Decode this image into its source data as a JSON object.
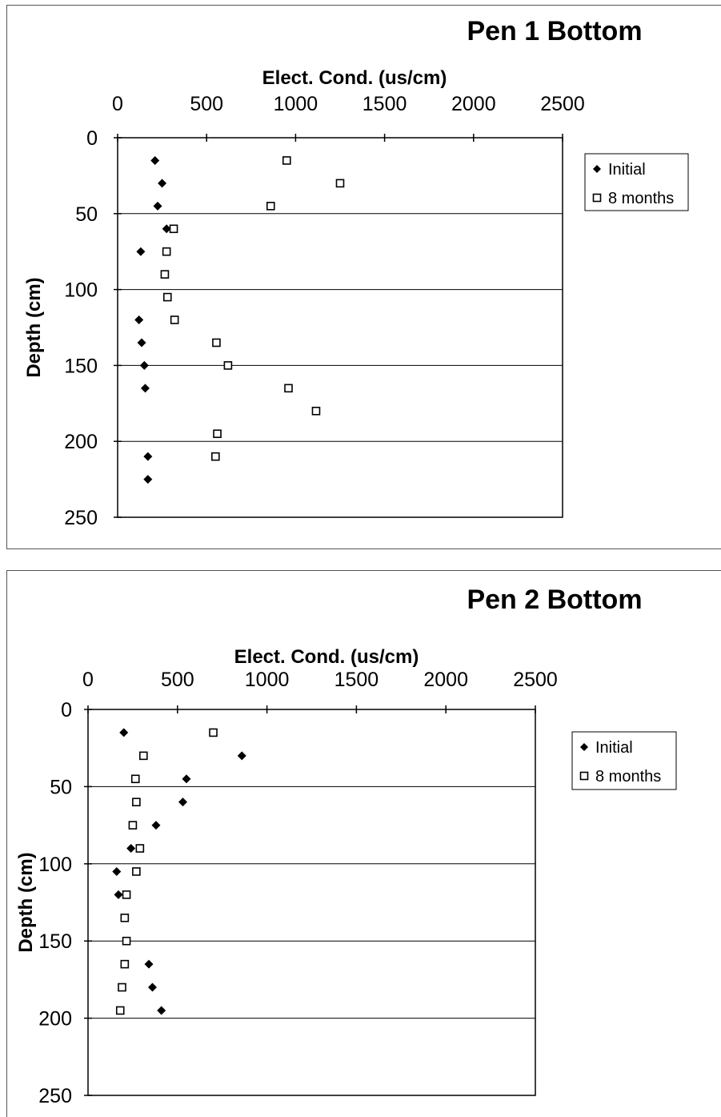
{
  "chart_data": [
    {
      "type": "scatter",
      "title": "Pen 1 Bottom",
      "xlabel": "Elect. Cond. (us/cm)",
      "ylabel": "Depth (cm)",
      "xlim": [
        0,
        2500
      ],
      "ylim": [
        0,
        250
      ],
      "x_ticks": [
        "0",
        "500",
        "1000",
        "1500",
        "2000",
        "2500"
      ],
      "y_ticks": [
        "0",
        "50",
        "100",
        "150",
        "200",
        "250"
      ],
      "y_inverted": true,
      "x_axis_position": "top",
      "grid": "horizontal",
      "legend_position": "right",
      "series": [
        {
          "name": "Initial",
          "marker": "filled-diamond",
          "points": [
            [
              210,
              15
            ],
            [
              250,
              30
            ],
            [
              225,
              45
            ],
            [
              275,
              60
            ],
            [
              130,
              75
            ],
            [
              120,
              120
            ],
            [
              135,
              135
            ],
            [
              150,
              150
            ],
            [
              155,
              165
            ],
            [
              170,
              210
            ],
            [
              170,
              225
            ]
          ]
        },
        {
          "name": "8 months",
          "marker": "open-square",
          "points": [
            [
              950,
              15
            ],
            [
              1250,
              30
            ],
            [
              860,
              45
            ],
            [
              315,
              60
            ],
            [
              275,
              75
            ],
            [
              265,
              90
            ],
            [
              280,
              105
            ],
            [
              320,
              120
            ],
            [
              555,
              135
            ],
            [
              620,
              150
            ],
            [
              960,
              165
            ],
            [
              1115,
              180
            ],
            [
              560,
              195
            ],
            [
              550,
              210
            ]
          ]
        }
      ]
    },
    {
      "type": "scatter",
      "title": "Pen 2 Bottom",
      "xlabel": "Elect. Cond. (us/cm)",
      "ylabel": "Depth (cm)",
      "xlim": [
        0,
        2500
      ],
      "ylim": [
        0,
        250
      ],
      "x_ticks": [
        "0",
        "500",
        "1000",
        "1500",
        "2000",
        "2500"
      ],
      "y_ticks": [
        "0",
        "50",
        "100",
        "150",
        "200",
        "250"
      ],
      "y_inverted": true,
      "x_axis_position": "top",
      "grid": "horizontal",
      "legend_position": "right",
      "series": [
        {
          "name": "Initial",
          "marker": "filled-diamond",
          "points": [
            [
              200,
              15
            ],
            [
              860,
              30
            ],
            [
              550,
              45
            ],
            [
              530,
              60
            ],
            [
              380,
              75
            ],
            [
              240,
              90
            ],
            [
              160,
              105
            ],
            [
              170,
              120
            ],
            [
              340,
              165
            ],
            [
              360,
              180
            ],
            [
              410,
              195
            ]
          ]
        },
        {
          "name": "8 months",
          "marker": "open-square",
          "points": [
            [
              700,
              15
            ],
            [
              310,
              30
            ],
            [
              265,
              45
            ],
            [
              270,
              60
            ],
            [
              250,
              75
            ],
            [
              290,
              90
            ],
            [
              270,
              105
            ],
            [
              215,
              120
            ],
            [
              205,
              135
            ],
            [
              215,
              150
            ],
            [
              205,
              165
            ],
            [
              190,
              180
            ],
            [
              180,
              195
            ]
          ]
        }
      ]
    }
  ]
}
